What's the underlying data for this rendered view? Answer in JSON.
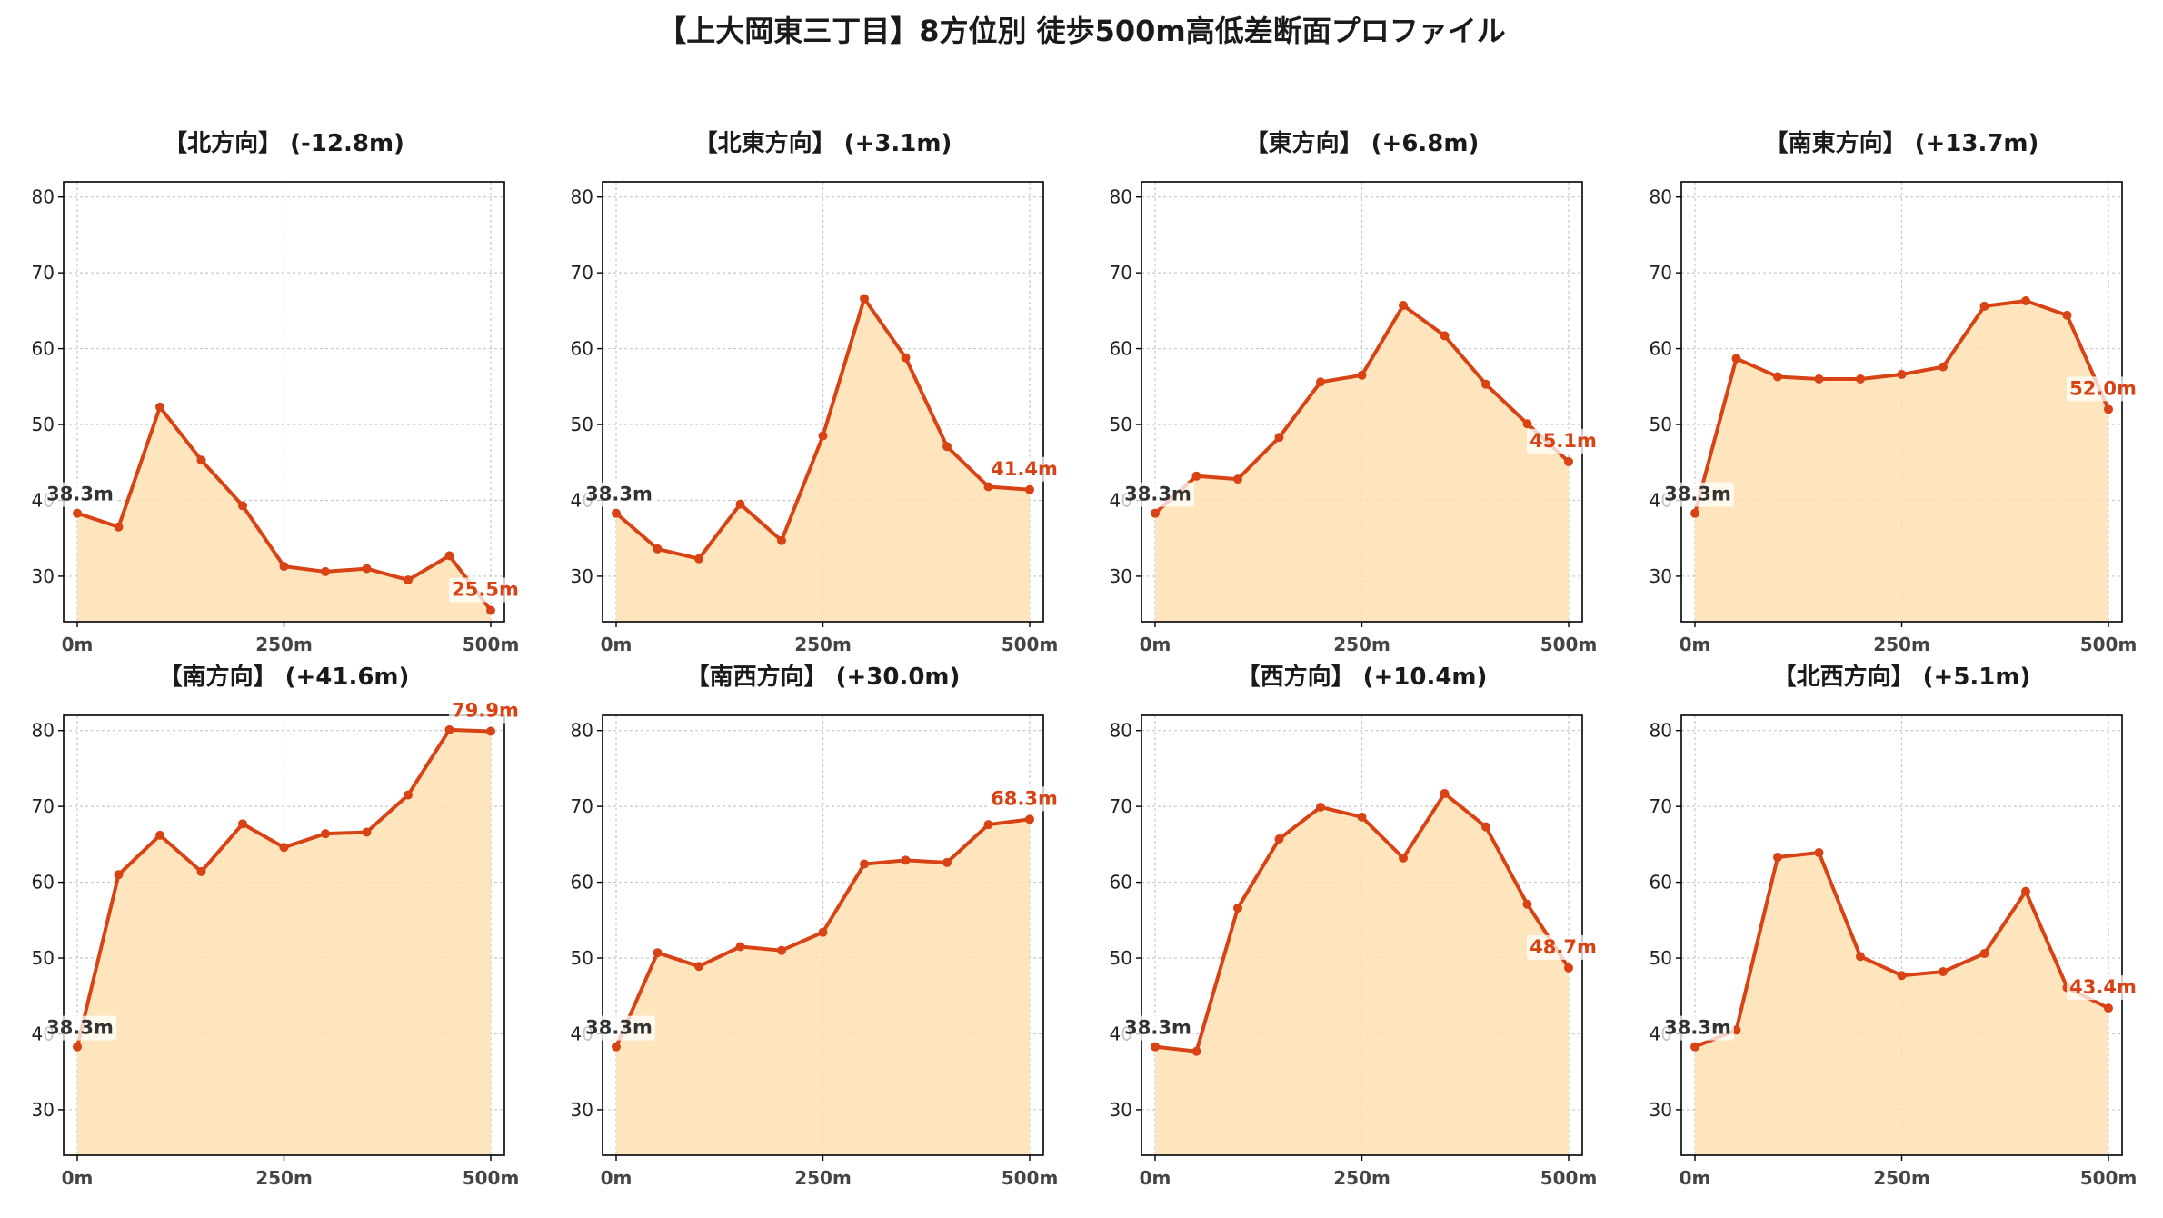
{
  "figure_title": "【上大岡東三丁目】8方位別 徒歩500m高低差断面プロファイル",
  "colors": {
    "line": "#d84315",
    "fill": "#ffe0b2",
    "grid": "#c8c8c8",
    "axis": "#000000"
  },
  "chart_data": [
    {
      "type": "area",
      "title": "【北方向】 (-12.8m)",
      "x": [
        0,
        50,
        100,
        150,
        200,
        250,
        300,
        350,
        400,
        450,
        500
      ],
      "y": [
        38.3,
        36.5,
        52.3,
        45.3,
        39.3,
        31.3,
        30.6,
        31.0,
        29.5,
        32.7,
        25.5
      ],
      "start_label": "38.3m",
      "end_label": "25.5m",
      "xticks": [
        "0m",
        "250m",
        "500m"
      ],
      "yticks": [
        "30",
        "40",
        "50",
        "60",
        "70",
        "80"
      ],
      "ylim": [
        24,
        82
      ],
      "xlim": [
        0,
        500
      ],
      "grid": true
    },
    {
      "type": "area",
      "title": "【北東方向】 (+3.1m)",
      "x": [
        0,
        50,
        100,
        150,
        200,
        250,
        300,
        350,
        400,
        450,
        500
      ],
      "y": [
        38.3,
        33.6,
        32.3,
        39.5,
        34.7,
        48.5,
        66.6,
        58.8,
        47.1,
        41.8,
        41.4
      ],
      "start_label": "38.3m",
      "end_label": "41.4m",
      "xticks": [
        "0m",
        "250m",
        "500m"
      ],
      "yticks": [
        "30",
        "40",
        "50",
        "60",
        "70",
        "80"
      ],
      "ylim": [
        24,
        82
      ],
      "xlim": [
        0,
        500
      ],
      "grid": true
    },
    {
      "type": "area",
      "title": "【東方向】 (+6.8m)",
      "x": [
        0,
        50,
        100,
        150,
        200,
        250,
        300,
        350,
        400,
        450,
        500
      ],
      "y": [
        38.3,
        43.2,
        42.8,
        48.3,
        55.6,
        56.5,
        65.7,
        61.7,
        55.3,
        50.1,
        45.1
      ],
      "start_label": "38.3m",
      "end_label": "45.1m",
      "xticks": [
        "0m",
        "250m",
        "500m"
      ],
      "yticks": [
        "30",
        "40",
        "50",
        "60",
        "70",
        "80"
      ],
      "ylim": [
        24,
        82
      ],
      "xlim": [
        0,
        500
      ],
      "grid": true
    },
    {
      "type": "area",
      "title": "【南東方向】 (+13.7m)",
      "x": [
        0,
        50,
        100,
        150,
        200,
        250,
        300,
        350,
        400,
        450,
        500
      ],
      "y": [
        38.3,
        58.7,
        56.3,
        56.0,
        56.0,
        56.6,
        57.6,
        65.6,
        66.3,
        64.4,
        52.0
      ],
      "start_label": "38.3m",
      "end_label": "52.0m",
      "xticks": [
        "0m",
        "250m",
        "500m"
      ],
      "yticks": [
        "30",
        "40",
        "50",
        "60",
        "70",
        "80"
      ],
      "ylim": [
        24,
        82
      ],
      "xlim": [
        0,
        500
      ],
      "grid": true
    },
    {
      "type": "area",
      "title": "【南方向】 (+41.6m)",
      "x": [
        0,
        50,
        100,
        150,
        200,
        250,
        300,
        350,
        400,
        450,
        500
      ],
      "y": [
        38.3,
        61.0,
        66.2,
        61.4,
        67.7,
        64.6,
        66.4,
        66.6,
        71.5,
        80.1,
        79.9
      ],
      "start_label": "38.3m",
      "end_label": "79.9m",
      "xticks": [
        "0m",
        "250m",
        "500m"
      ],
      "yticks": [
        "30",
        "40",
        "50",
        "60",
        "70",
        "80"
      ],
      "ylim": [
        24,
        82
      ],
      "xlim": [
        0,
        500
      ],
      "grid": true
    },
    {
      "type": "area",
      "title": "【南西方向】 (+30.0m)",
      "x": [
        0,
        50,
        100,
        150,
        200,
        250,
        300,
        350,
        400,
        450,
        500
      ],
      "y": [
        38.3,
        50.7,
        48.9,
        51.5,
        51.0,
        53.4,
        62.4,
        62.9,
        62.6,
        67.6,
        68.3
      ],
      "start_label": "38.3m",
      "end_label": "68.3m",
      "xticks": [
        "0m",
        "250m",
        "500m"
      ],
      "yticks": [
        "30",
        "40",
        "50",
        "60",
        "70",
        "80"
      ],
      "ylim": [
        24,
        82
      ],
      "xlim": [
        0,
        500
      ],
      "grid": true
    },
    {
      "type": "area",
      "title": "【西方向】 (+10.4m)",
      "x": [
        0,
        50,
        100,
        150,
        200,
        250,
        300,
        350,
        400,
        450,
        500
      ],
      "y": [
        38.3,
        37.7,
        56.6,
        65.7,
        69.9,
        68.6,
        63.2,
        71.7,
        67.3,
        57.1,
        48.7
      ],
      "start_label": "38.3m",
      "end_label": "48.7m",
      "xticks": [
        "0m",
        "250m",
        "500m"
      ],
      "yticks": [
        "30",
        "40",
        "50",
        "60",
        "70",
        "80"
      ],
      "ylim": [
        24,
        82
      ],
      "xlim": [
        0,
        500
      ],
      "grid": true
    },
    {
      "type": "area",
      "title": "【北西方向】 (+5.1m)",
      "x": [
        0,
        50,
        100,
        150,
        200,
        250,
        300,
        350,
        400,
        450,
        500
      ],
      "y": [
        38.3,
        40.5,
        63.3,
        63.9,
        50.2,
        47.7,
        48.2,
        50.6,
        58.8,
        46.1,
        43.4
      ],
      "start_label": "38.3m",
      "end_label": "43.4m",
      "xticks": [
        "0m",
        "250m",
        "500m"
      ],
      "yticks": [
        "30",
        "40",
        "50",
        "60",
        "70",
        "80"
      ],
      "ylim": [
        24,
        82
      ],
      "xlim": [
        0,
        500
      ],
      "grid": true
    }
  ]
}
